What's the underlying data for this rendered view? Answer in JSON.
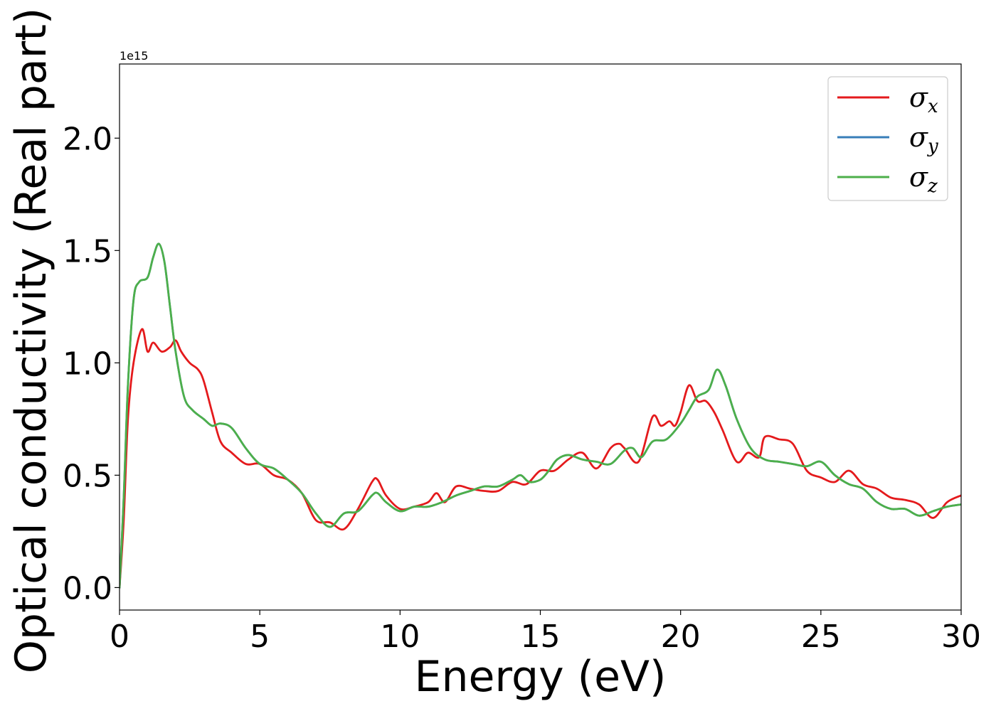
{
  "chart_data": {
    "type": "line",
    "title": "",
    "xlabel": "Energy (eV)",
    "ylabel": "Optical conductivity (Real part)",
    "y_offset_label": "1e15",
    "xlim": [
      0,
      30
    ],
    "ylim": [
      -0.1,
      2.33
    ],
    "x_ticks": [
      0,
      5,
      10,
      15,
      20,
      25,
      30
    ],
    "x_tick_labels": [
      "0",
      "5",
      "10",
      "15",
      "20",
      "25",
      "30"
    ],
    "y_ticks": [
      0.0,
      0.5,
      1.0,
      1.5,
      2.0
    ],
    "y_tick_labels": [
      "0.0",
      "0.5",
      "1.0",
      "1.5",
      "2.0"
    ],
    "grid": false,
    "legend_position": "top-right",
    "series": [
      {
        "name": "σx",
        "label_base": "σ",
        "label_sub": "x",
        "color": "#e41a1c",
        "x": [
          0,
          0.15,
          0.3,
          0.5,
          0.8,
          1.0,
          1.2,
          1.5,
          1.8,
          2.0,
          2.2,
          2.5,
          2.8,
          3.0,
          3.3,
          3.6,
          4.0,
          4.5,
          5.0,
          5.5,
          6.0,
          6.5,
          7.0,
          7.5,
          8.0,
          8.5,
          9.0,
          9.2,
          9.5,
          10.0,
          10.5,
          11.0,
          11.3,
          11.6,
          12.0,
          12.5,
          13.0,
          13.5,
          14.0,
          14.5,
          15.0,
          15.5,
          16.0,
          16.5,
          17.0,
          17.5,
          17.8,
          18.0,
          18.5,
          19.0,
          19.3,
          19.6,
          19.8,
          20.0,
          20.3,
          20.6,
          20.9,
          21.2,
          21.5,
          22.0,
          22.4,
          22.8,
          23.0,
          23.5,
          24.0,
          24.5,
          25.0,
          25.5,
          26.0,
          26.5,
          27.0,
          27.5,
          28.0,
          28.5,
          29.0,
          29.5,
          30.0
        ],
        "y": [
          0.0,
          0.3,
          0.75,
          1.0,
          1.15,
          1.05,
          1.09,
          1.05,
          1.07,
          1.1,
          1.05,
          1.0,
          0.97,
          0.92,
          0.78,
          0.65,
          0.6,
          0.55,
          0.55,
          0.5,
          0.48,
          0.42,
          0.3,
          0.29,
          0.26,
          0.35,
          0.47,
          0.48,
          0.41,
          0.35,
          0.36,
          0.38,
          0.42,
          0.38,
          0.45,
          0.44,
          0.43,
          0.43,
          0.47,
          0.46,
          0.52,
          0.52,
          0.57,
          0.6,
          0.53,
          0.62,
          0.64,
          0.62,
          0.56,
          0.76,
          0.72,
          0.74,
          0.72,
          0.78,
          0.9,
          0.83,
          0.83,
          0.78,
          0.7,
          0.56,
          0.6,
          0.58,
          0.67,
          0.66,
          0.64,
          0.52,
          0.49,
          0.47,
          0.52,
          0.46,
          0.44,
          0.4,
          0.39,
          0.37,
          0.31,
          0.38,
          0.41
        ]
      },
      {
        "name": "σy",
        "label_base": "σ",
        "label_sub": "y",
        "color": "#377eb8",
        "x": [
          0,
          0.15,
          0.3,
          0.5,
          0.7,
          1.0,
          1.2,
          1.4,
          1.6,
          1.8,
          2.0,
          2.3,
          2.6,
          3.0,
          3.3,
          3.6,
          4.0,
          4.5,
          5.0,
          5.5,
          6.0,
          6.5,
          7.0,
          7.5,
          8.0,
          8.5,
          9.0,
          9.2,
          9.5,
          10.0,
          10.5,
          11.0,
          11.5,
          12.0,
          12.5,
          13.0,
          13.5,
          14.0,
          14.3,
          14.6,
          15.0,
          15.3,
          15.6,
          16.0,
          16.5,
          17.0,
          17.5,
          18.0,
          18.3,
          18.6,
          19.0,
          19.5,
          20.0,
          20.3,
          20.6,
          21.0,
          21.3,
          21.6,
          22.0,
          22.5,
          23.0,
          23.5,
          24.0,
          24.5,
          25.0,
          25.5,
          26.0,
          26.5,
          27.0,
          27.5,
          28.0,
          28.5,
          29.0,
          29.5,
          30.0
        ],
        "y": [
          0.0,
          0.4,
          0.9,
          1.28,
          1.36,
          1.38,
          1.47,
          1.53,
          1.45,
          1.25,
          1.05,
          0.85,
          0.79,
          0.75,
          0.72,
          0.73,
          0.71,
          0.62,
          0.55,
          0.53,
          0.48,
          0.42,
          0.33,
          0.27,
          0.33,
          0.34,
          0.41,
          0.42,
          0.38,
          0.34,
          0.36,
          0.36,
          0.38,
          0.41,
          0.43,
          0.45,
          0.45,
          0.48,
          0.5,
          0.47,
          0.48,
          0.52,
          0.57,
          0.59,
          0.57,
          0.56,
          0.55,
          0.61,
          0.62,
          0.58,
          0.65,
          0.66,
          0.73,
          0.79,
          0.85,
          0.88,
          0.97,
          0.9,
          0.75,
          0.62,
          0.57,
          0.56,
          0.55,
          0.54,
          0.56,
          0.5,
          0.46,
          0.44,
          0.38,
          0.35,
          0.35,
          0.32,
          0.34,
          0.36,
          0.37
        ]
      },
      {
        "name": "σz",
        "label_base": "σ",
        "label_sub": "z",
        "color": "#4daf4a",
        "x": [
          0,
          0.15,
          0.3,
          0.5,
          0.7,
          1.0,
          1.2,
          1.4,
          1.6,
          1.8,
          2.0,
          2.3,
          2.6,
          3.0,
          3.3,
          3.6,
          4.0,
          4.5,
          5.0,
          5.5,
          6.0,
          6.5,
          7.0,
          7.5,
          8.0,
          8.5,
          9.0,
          9.2,
          9.5,
          10.0,
          10.5,
          11.0,
          11.5,
          12.0,
          12.5,
          13.0,
          13.5,
          14.0,
          14.3,
          14.6,
          15.0,
          15.3,
          15.6,
          16.0,
          16.5,
          17.0,
          17.5,
          18.0,
          18.3,
          18.6,
          19.0,
          19.5,
          20.0,
          20.3,
          20.6,
          21.0,
          21.3,
          21.6,
          22.0,
          22.5,
          23.0,
          23.5,
          24.0,
          24.5,
          25.0,
          25.5,
          26.0,
          26.5,
          27.0,
          27.5,
          28.0,
          28.5,
          29.0,
          29.5,
          30.0
        ],
        "y": [
          0.0,
          0.4,
          0.9,
          1.28,
          1.36,
          1.38,
          1.47,
          1.53,
          1.45,
          1.25,
          1.05,
          0.85,
          0.79,
          0.75,
          0.72,
          0.73,
          0.71,
          0.62,
          0.55,
          0.53,
          0.48,
          0.42,
          0.33,
          0.27,
          0.33,
          0.34,
          0.41,
          0.42,
          0.38,
          0.34,
          0.36,
          0.36,
          0.38,
          0.41,
          0.43,
          0.45,
          0.45,
          0.48,
          0.5,
          0.47,
          0.48,
          0.52,
          0.57,
          0.59,
          0.57,
          0.56,
          0.55,
          0.61,
          0.62,
          0.58,
          0.65,
          0.66,
          0.73,
          0.79,
          0.85,
          0.88,
          0.97,
          0.9,
          0.75,
          0.62,
          0.57,
          0.56,
          0.55,
          0.54,
          0.56,
          0.5,
          0.46,
          0.44,
          0.38,
          0.35,
          0.35,
          0.32,
          0.34,
          0.36,
          0.37
        ]
      }
    ]
  }
}
